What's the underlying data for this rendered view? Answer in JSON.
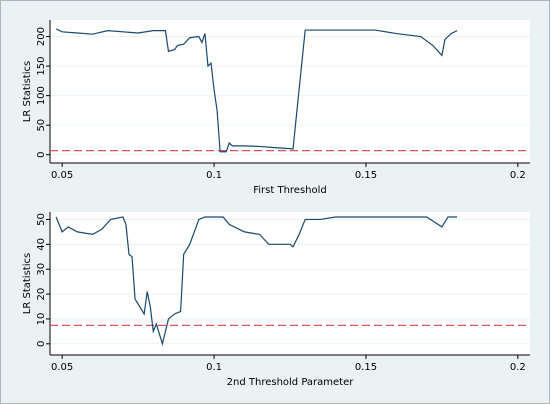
{
  "chart_data": [
    {
      "type": "line",
      "xlabel": "First Threshold",
      "ylabel": "LR Statistics",
      "xlim": [
        0.046,
        0.204
      ],
      "xticks": [
        0.05,
        0.1,
        0.15,
        0.2
      ],
      "ylim": [
        -14,
        228
      ],
      "yticks": [
        0,
        50,
        100,
        150,
        200
      ],
      "grid": true,
      "reference_line": {
        "value": 7,
        "color": "#d9535f"
      },
      "x": [
        0.048,
        0.05,
        0.055,
        0.06,
        0.065,
        0.07,
        0.075,
        0.08,
        0.084,
        0.085,
        0.087,
        0.088,
        0.09,
        0.092,
        0.095,
        0.096,
        0.097,
        0.098,
        0.099,
        0.1,
        0.101,
        0.102,
        0.103,
        0.104,
        0.105,
        0.106,
        0.11,
        0.115,
        0.12,
        0.126,
        0.13,
        0.14,
        0.153,
        0.16,
        0.168,
        0.172,
        0.175,
        0.176,
        0.178,
        0.18
      ],
      "series": [
        {
          "name": "LR",
          "color": "#1a476f",
          "values": [
            213,
            208,
            206,
            204,
            210,
            208,
            206,
            210,
            210,
            175,
            178,
            185,
            187,
            198,
            200,
            190,
            205,
            150,
            155,
            110,
            75,
            5,
            5,
            5,
            20,
            15,
            15,
            14,
            12,
            10,
            211,
            211,
            211,
            205,
            200,
            185,
            168,
            195,
            205,
            210
          ]
        }
      ]
    },
    {
      "type": "line",
      "xlabel": "2nd Threshold Parameter",
      "ylabel": "LR Statistics",
      "xlim": [
        0.046,
        0.204
      ],
      "xticks": [
        0.05,
        0.1,
        0.15,
        0.2
      ],
      "ylim": [
        -4.5,
        53
      ],
      "yticks": [
        0,
        10,
        20,
        30,
        40,
        50
      ],
      "grid": true,
      "reference_line": {
        "value": 7.4,
        "color": "#d9535f"
      },
      "x": [
        0.048,
        0.05,
        0.052,
        0.055,
        0.06,
        0.063,
        0.066,
        0.07,
        0.071,
        0.072,
        0.073,
        0.074,
        0.077,
        0.078,
        0.079,
        0.08,
        0.081,
        0.083,
        0.084,
        0.085,
        0.087,
        0.089,
        0.09,
        0.092,
        0.095,
        0.097,
        0.103,
        0.105,
        0.11,
        0.115,
        0.118,
        0.125,
        0.126,
        0.128,
        0.13,
        0.135,
        0.14,
        0.17,
        0.175,
        0.177,
        0.18
      ],
      "series": [
        {
          "name": "LR",
          "color": "#1a476f",
          "values": [
            51,
            45,
            47,
            45,
            44,
            46,
            50,
            51,
            48,
            36,
            35,
            18,
            12,
            21,
            15,
            5,
            8,
            0,
            5,
            10,
            12,
            13,
            36,
            40,
            50,
            51,
            51,
            48,
            45,
            44,
            40,
            40,
            39,
            44,
            50,
            50,
            51,
            51,
            47,
            51,
            51
          ]
        }
      ]
    }
  ]
}
